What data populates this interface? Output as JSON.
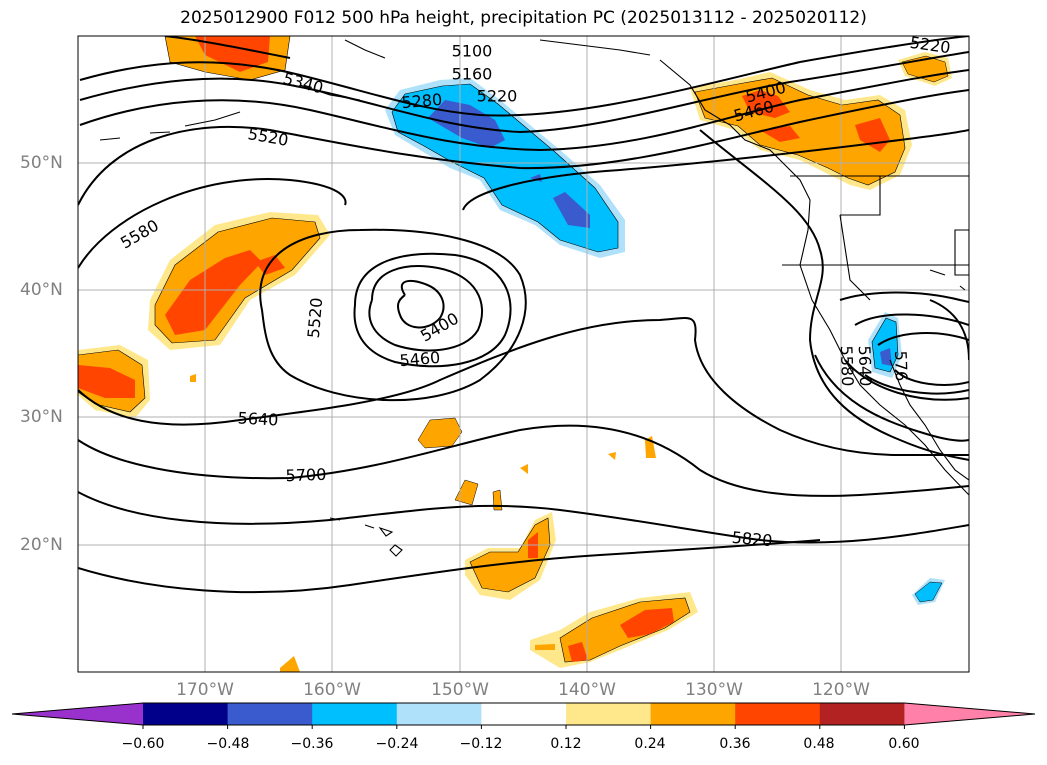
{
  "title": "2025012900 F012 500 hPa height, precipitation PC (2025013112 - 2025020112)",
  "lat_labels": [
    "50°N",
    "40°N",
    "30°N",
    "20°N"
  ],
  "lon_labels": [
    "170°W",
    "160°W",
    "150°W",
    "140°W",
    "130°W",
    "120°W"
  ],
  "contour_labels": [
    "5100",
    "5160",
    "5220",
    "5280",
    "5340",
    "5400",
    "5460",
    "5520",
    "5580",
    "5640",
    "5700",
    "5820",
    "5220",
    "5400",
    "5460",
    "5520",
    "5580",
    "5640",
    "576"
  ],
  "colorbar": {
    "ticks": [
      "−0.60",
      "−0.48",
      "−0.36",
      "−0.24",
      "−0.12",
      "0.12",
      "0.24",
      "0.36",
      "0.48",
      "0.60"
    ],
    "colors": [
      "#9932cc",
      "#00008b",
      "#3a5bcd",
      "#00bfff",
      "#afe2fa",
      "#ffffff",
      "#ffe88c",
      "#ffa500",
      "#ff4500",
      "#b22222",
      "#ff80a8"
    ]
  },
  "fill_colors": {
    "light_yellow": "#ffe88c",
    "orange": "#ffa500",
    "red_orange": "#ff4500",
    "dark_red": "#b22222",
    "light_blue": "#afe2fa",
    "sky_blue": "#00bfff",
    "mid_blue": "#3a5bcd"
  }
}
